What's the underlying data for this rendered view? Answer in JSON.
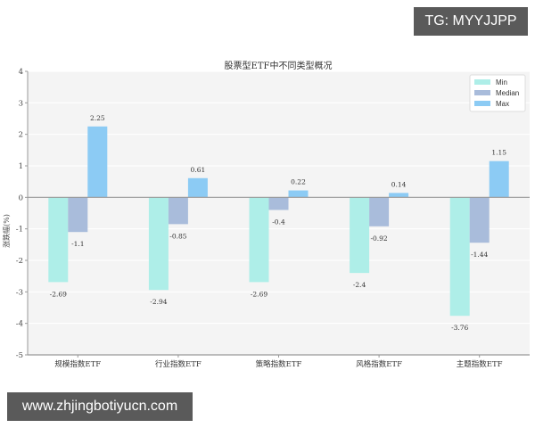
{
  "watermarks": {
    "top_right": "TG: MYYJJPP",
    "bottom_left": "www.zhjingbotiyucn.com"
  },
  "colors": {
    "min": "#aeeee8",
    "median": "#a9bcdb",
    "max": "#8ccbf4",
    "plot_bg": "#f4f4f4",
    "axis": "#999999"
  },
  "chart_data": {
    "type": "bar",
    "title": "股票型ETF中不同类型概况",
    "xlabel": "",
    "ylabel": "涨跌幅(%)",
    "ylim": [
      -5,
      4
    ],
    "yticks": [
      4,
      3,
      2,
      1,
      0,
      -1,
      -2,
      -3,
      -4,
      -5
    ],
    "grid": true,
    "legend_position": "upper right",
    "categories": [
      "规模指数ETF",
      "行业指数ETF",
      "策略指数ETF",
      "风格指数ETF",
      "主题指数ETF"
    ],
    "series": [
      {
        "name": "Min",
        "values": [
          -2.69,
          -2.94,
          -2.69,
          -2.4,
          -3.76
        ]
      },
      {
        "name": "Median",
        "values": [
          -1.1,
          -0.85,
          -0.4,
          -0.92,
          -1.44
        ]
      },
      {
        "name": "Max",
        "values": [
          2.25,
          0.61,
          0.22,
          0.14,
          1.15
        ]
      }
    ]
  }
}
